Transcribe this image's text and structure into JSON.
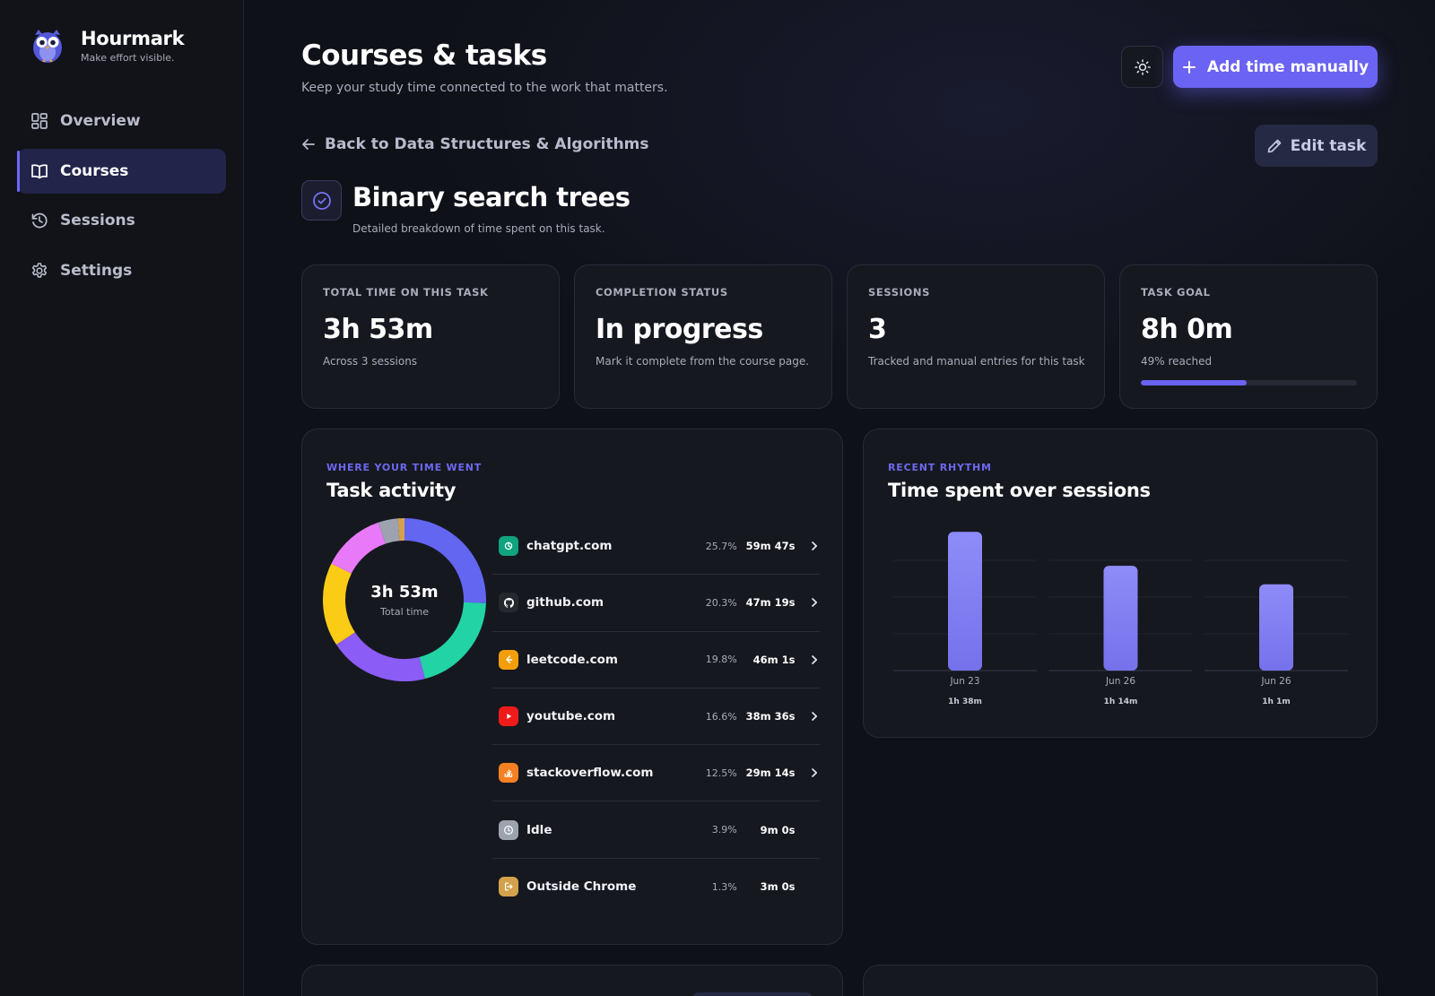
{
  "brand": {
    "name": "Hourmark",
    "tagline": "Make effort visible."
  },
  "nav": [
    {
      "label": "Overview",
      "icon": "grid-icon",
      "active": false
    },
    {
      "label": "Courses",
      "icon": "book-icon",
      "active": true
    },
    {
      "label": "Sessions",
      "icon": "history-icon",
      "active": false
    },
    {
      "label": "Settings",
      "icon": "gear-icon",
      "active": false
    }
  ],
  "header": {
    "title": "Courses & tasks",
    "subtitle": "Keep your study time connected to the work that matters.",
    "add_label": "Add time manually"
  },
  "back_label": "Back to Data Structures & Algorithms",
  "edit_label": "Edit task",
  "task": {
    "title": "Binary search trees",
    "subtitle": "Detailed breakdown of time spent on this task."
  },
  "stats": [
    {
      "label": "Total time on this task",
      "value": "3h 53m",
      "note": "Across 3 sessions"
    },
    {
      "label": "Completion status",
      "value": "In progress",
      "note": "Mark it complete from the course page."
    },
    {
      "label": "Sessions",
      "value": "3",
      "note": "Tracked and manual entries for this task"
    },
    {
      "label": "Task goal",
      "value": "8h 0m",
      "note": "49% reached",
      "progress": 0.49
    }
  ],
  "activity": {
    "kicker": "Where your time went",
    "title": "Task activity",
    "total": "3h 53m",
    "total_label": "Total time",
    "items": [
      {
        "name": "chatgpt.com",
        "pct": "25.7%",
        "time": "59m 47s",
        "share": 25.7,
        "color": "#6366f1",
        "icon_bg": "#10a37f",
        "icon": "chatgpt-icon",
        "chevron": true
      },
      {
        "name": "github.com",
        "pct": "20.3%",
        "time": "47m 19s",
        "share": 20.3,
        "color": "#22d3a6",
        "icon_bg": "#24292f",
        "icon": "github-icon",
        "chevron": true
      },
      {
        "name": "leetcode.com",
        "pct": "19.8%",
        "time": "46m 1s",
        "share": 19.8,
        "color": "#8b5cf6",
        "icon_bg": "#f59e0b",
        "icon": "leetcode-icon",
        "chevron": true
      },
      {
        "name": "youtube.com",
        "pct": "16.6%",
        "time": "38m 36s",
        "share": 16.6,
        "color": "#facc15",
        "icon_bg": "#ef1b1b",
        "icon": "youtube-icon",
        "chevron": true
      },
      {
        "name": "stackoverflow.com",
        "pct": "12.5%",
        "time": "29m 14s",
        "share": 12.5,
        "color": "#e879f9",
        "icon_bg": "#f48024",
        "icon": "stackoverflow-icon",
        "chevron": true
      },
      {
        "name": "Idle",
        "pct": "3.9%",
        "time": "9m 0s",
        "share": 3.9,
        "color": "#9ca3af",
        "icon_bg": "#9ca3af",
        "icon": "clock-icon",
        "chevron": false
      },
      {
        "name": "Outside Chrome",
        "pct": "1.3%",
        "time": "3m 0s",
        "share": 1.3,
        "color": "#d4a24c",
        "icon_bg": "#d4a24c",
        "icon": "exit-icon",
        "chevron": false
      }
    ]
  },
  "rhythm": {
    "kicker": "Recent rhythm",
    "title": "Time spent over sessions"
  },
  "chart_data": {
    "type": "bar",
    "categories": [
      "Jun 23",
      "Jun 26",
      "Jun 26"
    ],
    "values": [
      98,
      74,
      61
    ],
    "value_labels": [
      "1h 38m",
      "1h 14m",
      "1h 1m"
    ],
    "unit": "minutes",
    "grid": true,
    "color": "#7b76f5"
  }
}
